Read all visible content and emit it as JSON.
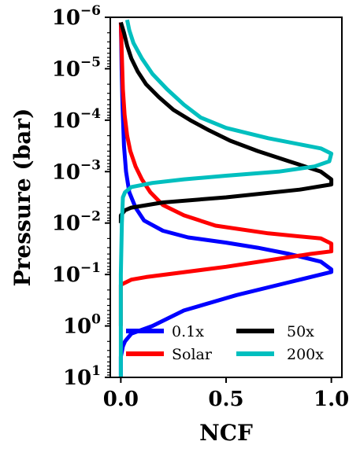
{
  "chart_data": {
    "type": "line",
    "xlabel": "NCF",
    "ylabel": "Pressure (bar)",
    "xlim": [
      -0.05,
      1.05
    ],
    "ylim_log10": [
      -6,
      1
    ],
    "y_scale": "log",
    "y_inverted": true,
    "x_ticks": [
      {
        "value": 0.0,
        "label": "0.0"
      },
      {
        "value": 0.5,
        "label": "0.5"
      },
      {
        "value": 1.0,
        "label": "1.0"
      }
    ],
    "y_ticks": [
      {
        "log10": -6,
        "base": "10",
        "exp": "−6"
      },
      {
        "log10": -5,
        "base": "10",
        "exp": "−5"
      },
      {
        "log10": -4,
        "base": "10",
        "exp": "−4"
      },
      {
        "log10": -3,
        "base": "10",
        "exp": "−3"
      },
      {
        "log10": -2,
        "base": "10",
        "exp": "−2"
      },
      {
        "log10": -1,
        "base": "10",
        "exp": "−1"
      },
      {
        "log10": 0,
        "base": "10",
        "exp": "0"
      },
      {
        "log10": 1,
        "base": "10",
        "exp": "1"
      }
    ],
    "legend": {
      "placement": "lower-center",
      "columns": 2
    },
    "series": [
      {
        "name": "0.1x",
        "color": "#0000ff",
        "points": [
          [
            0.0,
            1.0
          ],
          [
            0.0,
            0.6
          ],
          [
            0.01,
            0.4
          ],
          [
            0.02,
            0.3
          ],
          [
            0.05,
            0.15
          ],
          [
            0.15,
            0.0
          ],
          [
            0.3,
            -0.3
          ],
          [
            0.55,
            -0.6
          ],
          [
            0.8,
            -0.85
          ],
          [
            1.0,
            -1.05
          ],
          [
            1.0,
            -1.1
          ],
          [
            0.95,
            -1.25
          ],
          [
            0.8,
            -1.4
          ],
          [
            0.65,
            -1.52
          ],
          [
            0.5,
            -1.62
          ],
          [
            0.32,
            -1.72
          ],
          [
            0.2,
            -1.85
          ],
          [
            0.11,
            -2.05
          ],
          [
            0.07,
            -2.3
          ],
          [
            0.04,
            -2.6
          ],
          [
            0.025,
            -3.0
          ],
          [
            0.015,
            -3.5
          ],
          [
            0.008,
            -4.3
          ],
          [
            0.004,
            -5.0
          ],
          [
            0.002,
            -5.5
          ],
          [
            0.0,
            -5.9
          ]
        ]
      },
      {
        "name": "Solar",
        "color": "#ff0000",
        "points": [
          [
            0.0,
            0.0
          ],
          [
            0.0,
            -0.8
          ],
          [
            0.05,
            -0.9
          ],
          [
            0.12,
            -0.95
          ],
          [
            0.5,
            -1.15
          ],
          [
            0.9,
            -1.4
          ],
          [
            1.0,
            -1.45
          ],
          [
            1.0,
            -1.6
          ],
          [
            0.95,
            -1.7
          ],
          [
            0.7,
            -1.8
          ],
          [
            0.45,
            -1.95
          ],
          [
            0.3,
            -2.15
          ],
          [
            0.2,
            -2.35
          ],
          [
            0.14,
            -2.6
          ],
          [
            0.1,
            -2.85
          ],
          [
            0.07,
            -3.1
          ],
          [
            0.045,
            -3.4
          ],
          [
            0.03,
            -3.7
          ],
          [
            0.018,
            -4.1
          ],
          [
            0.01,
            -4.6
          ],
          [
            0.006,
            -5.1
          ],
          [
            0.003,
            -5.5
          ],
          [
            0.0,
            -5.9
          ]
        ]
      },
      {
        "name": "50x",
        "color": "#000000",
        "points": [
          [
            0.0,
            -2.0
          ],
          [
            0.0,
            -2.15
          ],
          [
            0.02,
            -2.25
          ],
          [
            0.05,
            -2.3
          ],
          [
            0.2,
            -2.4
          ],
          [
            0.5,
            -2.5
          ],
          [
            0.85,
            -2.65
          ],
          [
            1.0,
            -2.75
          ],
          [
            1.0,
            -2.85
          ],
          [
            0.95,
            -3.0
          ],
          [
            0.8,
            -3.2
          ],
          [
            0.65,
            -3.4
          ],
          [
            0.52,
            -3.6
          ],
          [
            0.42,
            -3.8
          ],
          [
            0.33,
            -4.0
          ],
          [
            0.25,
            -4.2
          ],
          [
            0.18,
            -4.45
          ],
          [
            0.12,
            -4.7
          ],
          [
            0.08,
            -4.95
          ],
          [
            0.05,
            -5.2
          ],
          [
            0.03,
            -5.45
          ],
          [
            0.015,
            -5.7
          ],
          [
            0.0,
            -5.9
          ]
        ]
      },
      {
        "name": "200x",
        "color": "#00bfbf",
        "points": [
          [
            0.0,
            1.0
          ],
          [
            0.0,
            -1.0
          ],
          [
            0.005,
            -2.0
          ],
          [
            0.01,
            -2.5
          ],
          [
            0.02,
            -2.6
          ],
          [
            0.05,
            -2.7
          ],
          [
            0.15,
            -2.78
          ],
          [
            0.3,
            -2.85
          ],
          [
            0.5,
            -2.92
          ],
          [
            0.75,
            -3.0
          ],
          [
            0.92,
            -3.1
          ],
          [
            0.99,
            -3.2
          ],
          [
            1.0,
            -3.35
          ],
          [
            0.95,
            -3.45
          ],
          [
            0.7,
            -3.65
          ],
          [
            0.5,
            -3.85
          ],
          [
            0.38,
            -4.05
          ],
          [
            0.3,
            -4.3
          ],
          [
            0.22,
            -4.6
          ],
          [
            0.15,
            -4.9
          ],
          [
            0.1,
            -5.2
          ],
          [
            0.06,
            -5.5
          ],
          [
            0.04,
            -5.75
          ],
          [
            0.03,
            -5.95
          ]
        ]
      }
    ]
  }
}
